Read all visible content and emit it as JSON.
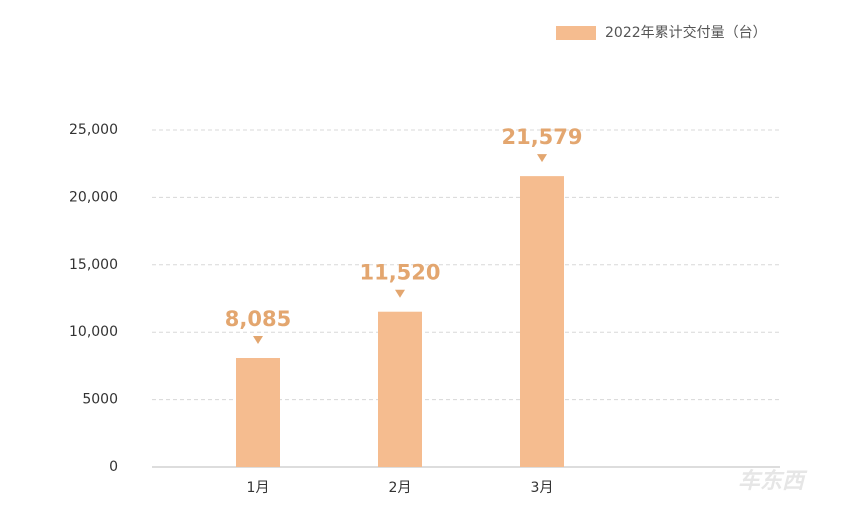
{
  "chart_data": {
    "type": "bar",
    "legend_label": "2022年累计交付量（台）",
    "categories": [
      "1月",
      "2月",
      "3月"
    ],
    "values": [
      8085,
      11520,
      21579
    ],
    "value_labels": [
      "8,085",
      "11,520",
      "21,579"
    ],
    "color": "#f5bc8f",
    "label_color": "#e3a66f",
    "ylim": [
      0,
      25000
    ],
    "yticks": [
      0,
      5000,
      {
        "value": 10000,
        "label": "10,000"
      },
      {
        "value": 15000,
        "label": "15,000"
      },
      {
        "value": 20000,
        "label": "20,000"
      },
      {
        "value": 25000,
        "label": "25,000"
      }
    ],
    "grid": true,
    "legend_position": "top-right",
    "watermark": "车东西"
  }
}
